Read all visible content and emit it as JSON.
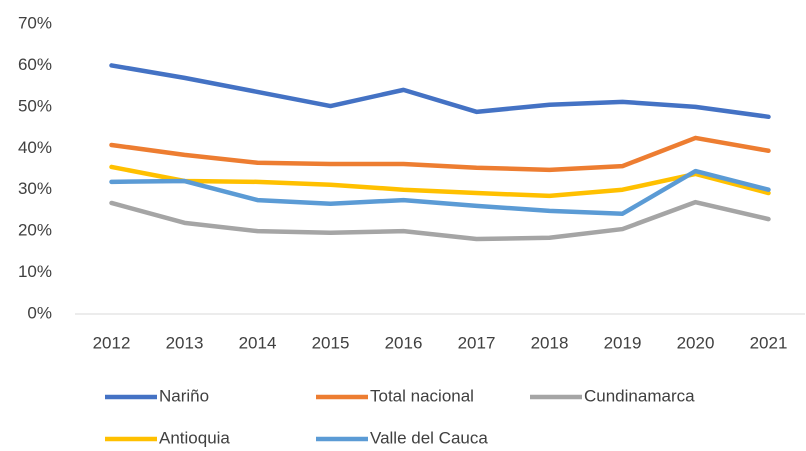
{
  "chart_data": {
    "type": "line",
    "categories": [
      "2012",
      "2013",
      "2014",
      "2015",
      "2016",
      "2017",
      "2018",
      "2019",
      "2020",
      "2021"
    ],
    "series": [
      {
        "name": "Nariño",
        "color": "#4472c4",
        "values": [
          60,
          57,
          53.6,
          50.2,
          54.1,
          48.8,
          50.5,
          51.2,
          50,
          47.6
        ]
      },
      {
        "name": "Total nacional",
        "color": "#ed7d31",
        "values": [
          40.8,
          38.4,
          36.5,
          36.2,
          36.2,
          35.3,
          34.8,
          35.7,
          42.5,
          39.4
        ]
      },
      {
        "name": "Cundinamarca",
        "color": "#a5a5a5",
        "values": [
          26.8,
          22,
          20,
          19.6,
          20,
          18.1,
          18.4,
          20.5,
          27,
          22.9
        ]
      },
      {
        "name": "Antioquia",
        "color": "#ffc000",
        "values": [
          35.5,
          32.1,
          31.9,
          31.2,
          30,
          29.2,
          28.5,
          30,
          33.8,
          29.2
        ]
      },
      {
        "name": "Valle del Cauca",
        "color": "#5b9bd5",
        "values": [
          31.9,
          32.1,
          27.5,
          26.6,
          27.5,
          26.1,
          24.9,
          24.2,
          34.5,
          30
        ]
      }
    ],
    "ylim": [
      0,
      70
    ],
    "yticks": [
      {
        "value": 0,
        "label": "0%"
      },
      {
        "value": 10,
        "label": "10%"
      },
      {
        "value": 20,
        "label": "20%"
      },
      {
        "value": 30,
        "label": "30%"
      },
      {
        "value": 40,
        "label": "40%"
      },
      {
        "value": 50,
        "label": "50%"
      },
      {
        "value": 60,
        "label": "60%"
      },
      {
        "value": 70,
        "label": "70%"
      }
    ],
    "grid": false,
    "legend": "bottom"
  }
}
